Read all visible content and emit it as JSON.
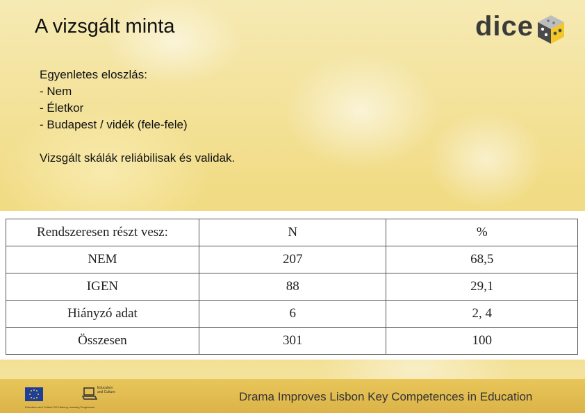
{
  "slide": {
    "title": "A vizsgált minta"
  },
  "logo": {
    "text": "dice",
    "icon": "dice-cube-icon",
    "colors": {
      "text": "#3a3a3a",
      "cube_dark": "#4a4a4a",
      "cube_yellow": "#f2c72a"
    }
  },
  "content": {
    "line1": "Egyenletes eloszlás:",
    "line2": "- Nem",
    "line3": "- Életkor",
    "line4": "- Budapest / vidék (fele-fele)",
    "line5": "Vizsgált skálák reliábilisak és validak."
  },
  "table": {
    "headers": [
      "Rendszeresen részt vesz:",
      "N",
      "%"
    ],
    "rows": [
      [
        "NEM",
        "207",
        "68,5"
      ],
      [
        "IGEN",
        "88",
        "29,1"
      ],
      [
        "Hiányzó adat",
        "6",
        "2, 4"
      ],
      [
        "Összesen",
        "301",
        "100"
      ]
    ]
  },
  "footer": {
    "text": "Drama Improves Lisbon Key Competences in Education",
    "eu_caption": "Education and Culture DG Lifelong Learning Programme",
    "edu_caption": "Education and Culture",
    "colors": {
      "bar": "#e2bd52"
    }
  }
}
